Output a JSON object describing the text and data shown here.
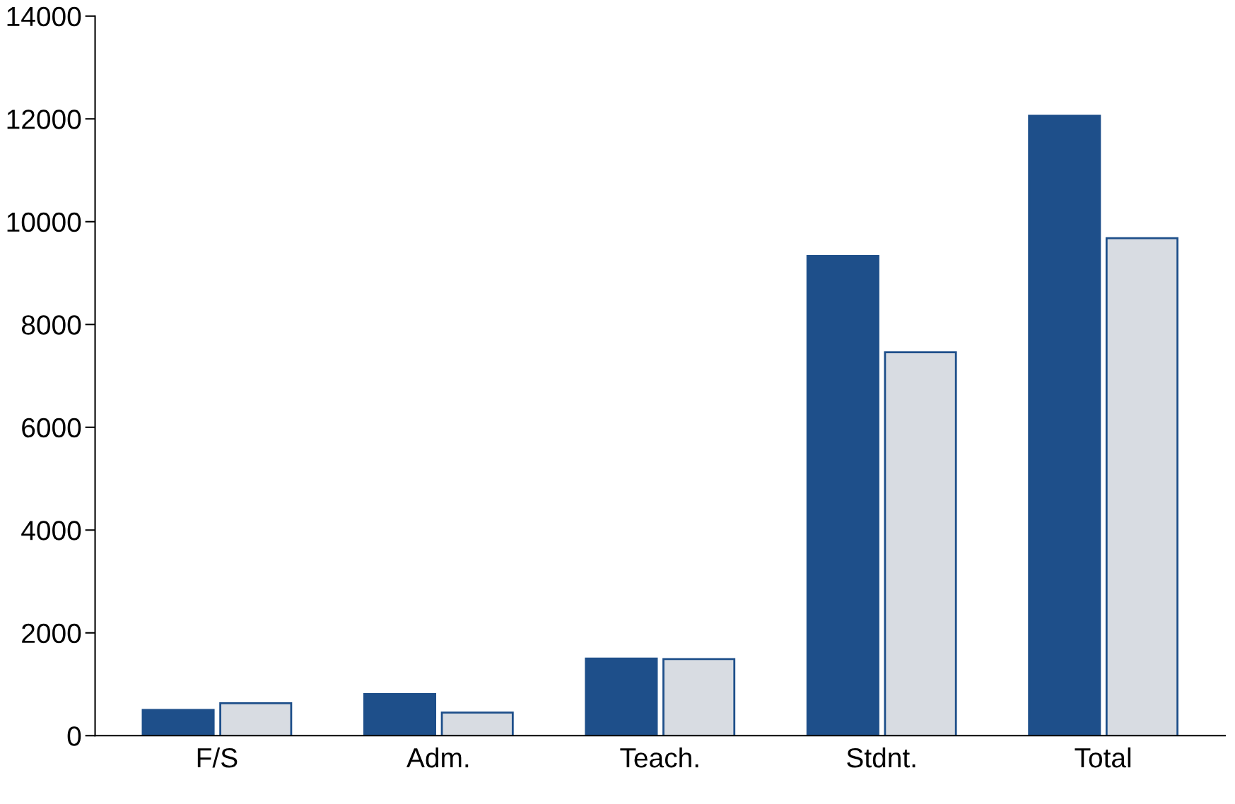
{
  "chart_data": {
    "type": "bar",
    "categories": [
      "F/S",
      "Adm.",
      "Teach.",
      "Stdnt.",
      "Total"
    ],
    "series": [
      {
        "color": "#1e4f8a",
        "values": [
          500,
          810,
          1500,
          9330,
          12060
        ]
      },
      {
        "color": "#d8dce2",
        "values": [
          630,
          450,
          1490,
          7460,
          9680
        ]
      }
    ],
    "ylim": [
      0,
      14000
    ],
    "yticks": [
      0,
      2000,
      4000,
      6000,
      8000,
      10000,
      12000,
      14000
    ],
    "grid": false,
    "legend": false
  }
}
